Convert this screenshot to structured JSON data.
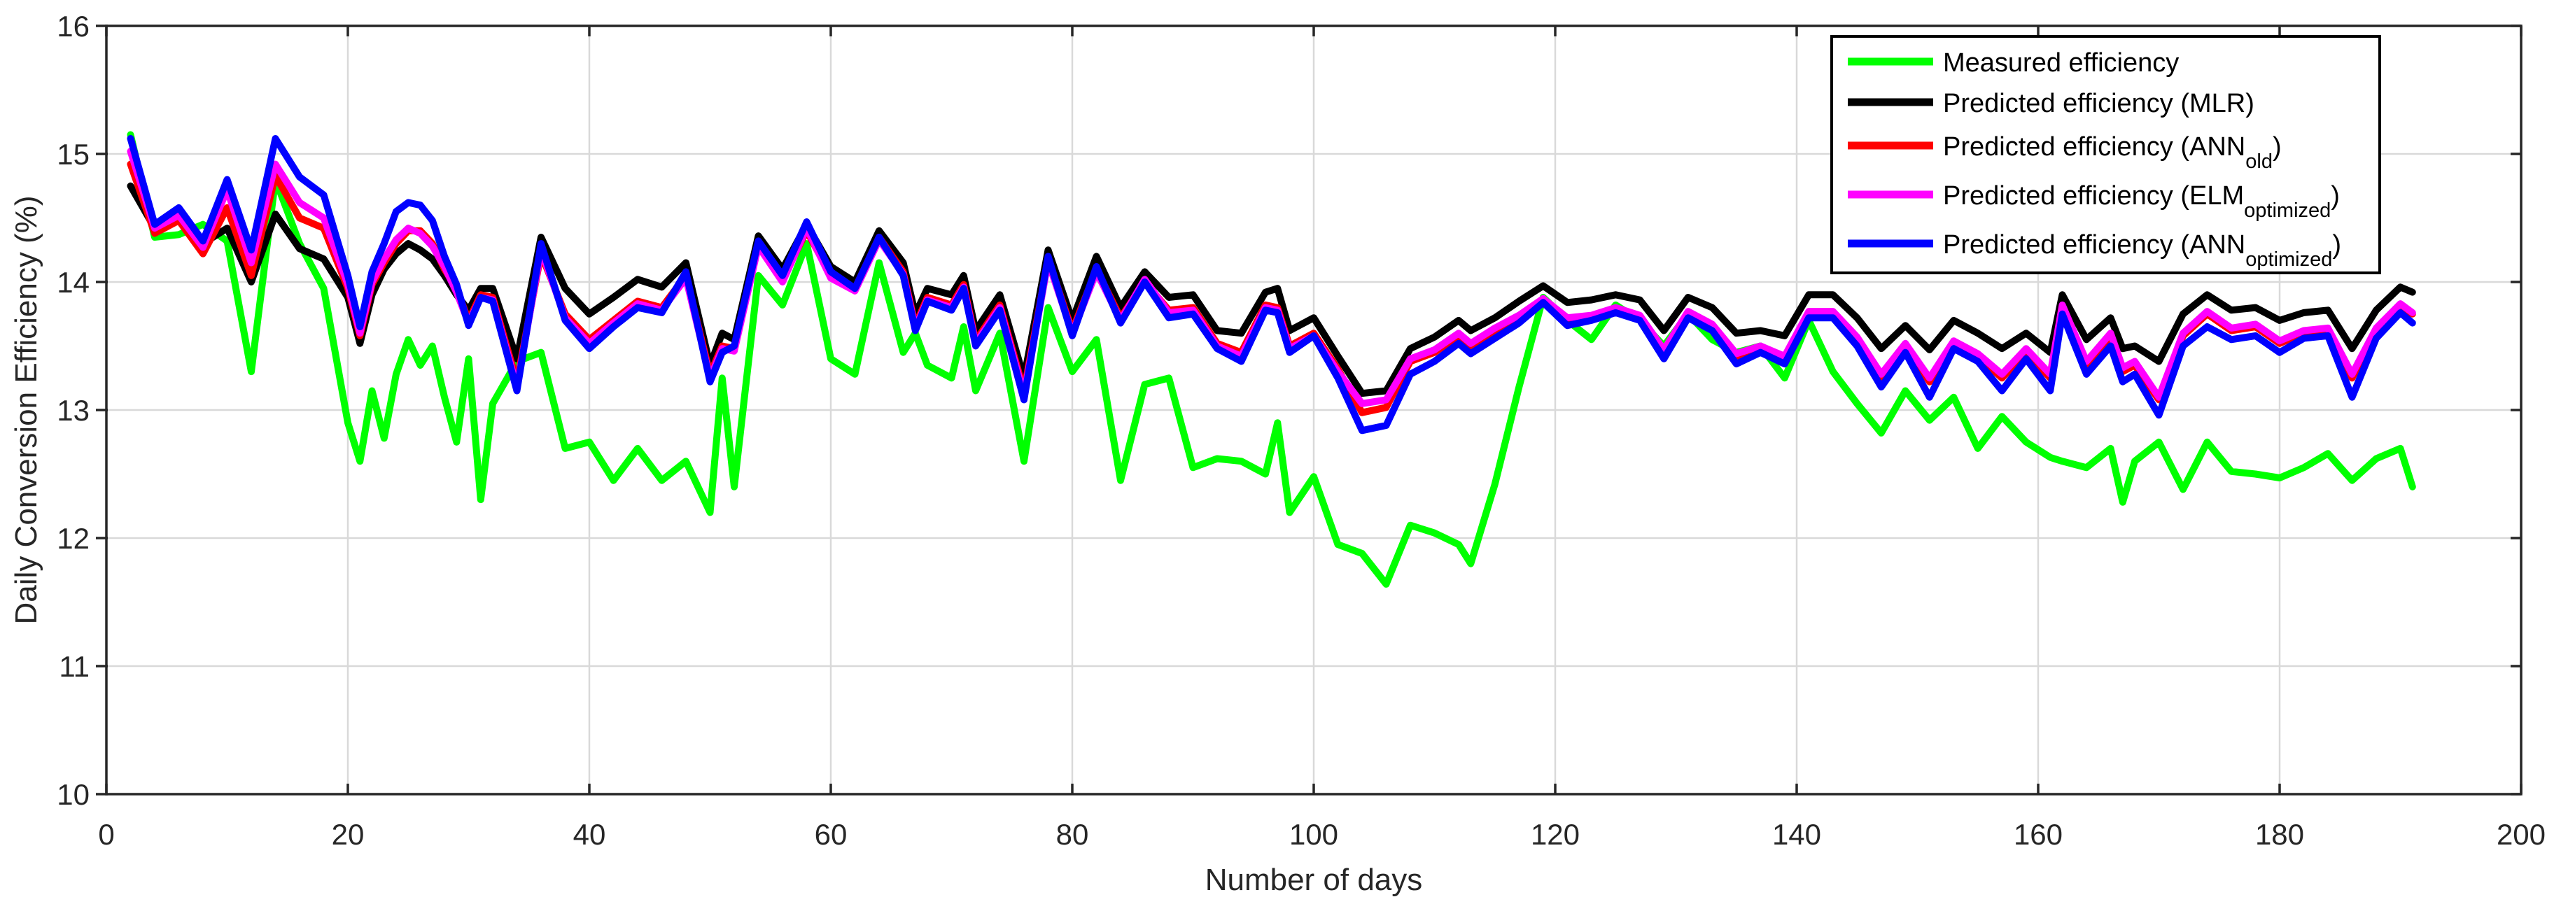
{
  "chart_data": {
    "type": "line",
    "title": "",
    "xlabel": "Number of days",
    "ylabel": "Daily Conversion Efficiency (%)",
    "xlim": [
      0,
      200
    ],
    "ylim": [
      10,
      16
    ],
    "xticks": [
      0,
      20,
      40,
      60,
      80,
      100,
      120,
      140,
      160,
      180,
      200
    ],
    "xtick_labels": [
      "0",
      "20",
      "40",
      "60",
      "80",
      "100",
      "120",
      "140",
      "160",
      "180",
      "200"
    ],
    "yticks": [
      10,
      11,
      12,
      13,
      14,
      15,
      16
    ],
    "ytick_labels": [
      "10",
      "11",
      "12",
      "13",
      "14",
      "15",
      "16"
    ],
    "grid": true,
    "grid_color": "#d9d9d9",
    "axis_color": "#262626",
    "legend_position": "top-right",
    "x": [
      2,
      4,
      6,
      8,
      10,
      12,
      14,
      16,
      18,
      20,
      21,
      22,
      23,
      24,
      25,
      26,
      27,
      28,
      29,
      30,
      31,
      32,
      34,
      36,
      38,
      40,
      42,
      44,
      46,
      48,
      50,
      51,
      52,
      54,
      56,
      58,
      60,
      62,
      64,
      66,
      67,
      68,
      70,
      71,
      72,
      74,
      76,
      78,
      80,
      82,
      84,
      86,
      88,
      90,
      92,
      94,
      96,
      97,
      98,
      100,
      102,
      104,
      106,
      108,
      110,
      112,
      113,
      115,
      117,
      119,
      121,
      123,
      125,
      127,
      129,
      131,
      133,
      135,
      137,
      139,
      141,
      143,
      145,
      147,
      149,
      151,
      153,
      155,
      157,
      159,
      161,
      162,
      164,
      166,
      167,
      168,
      170,
      172,
      174,
      176,
      178,
      180,
      182,
      184,
      186,
      188,
      190,
      191
    ],
    "series": [
      {
        "name": "measured-efficiency",
        "label_main": "Measured efficiency",
        "label_sub": "",
        "label_close": "",
        "color": "#00ff00",
        "values": [
          15.15,
          14.35,
          14.37,
          14.45,
          14.32,
          13.3,
          14.8,
          14.3,
          13.95,
          12.9,
          12.6,
          13.15,
          12.78,
          13.28,
          13.55,
          13.35,
          13.5,
          13.1,
          12.75,
          13.4,
          12.3,
          13.05,
          13.38,
          13.45,
          12.7,
          12.75,
          12.45,
          12.7,
          12.45,
          12.6,
          12.2,
          13.25,
          12.4,
          14.05,
          13.82,
          14.3,
          13.4,
          13.28,
          14.15,
          13.45,
          13.6,
          13.35,
          13.25,
          13.65,
          13.15,
          13.6,
          12.6,
          13.8,
          13.3,
          13.55,
          12.45,
          13.2,
          13.25,
          12.55,
          12.62,
          12.6,
          12.5,
          12.9,
          12.2,
          12.48,
          11.95,
          11.88,
          11.64,
          12.1,
          12.04,
          11.95,
          11.8,
          12.42,
          13.18,
          13.88,
          13.7,
          13.55,
          13.82,
          13.7,
          13.5,
          13.75,
          13.55,
          13.45,
          13.5,
          13.25,
          13.7,
          13.3,
          13.05,
          12.82,
          13.15,
          12.92,
          13.1,
          12.7,
          12.95,
          12.75,
          12.63,
          12.6,
          12.55,
          12.7,
          12.28,
          12.6,
          12.75,
          12.38,
          12.75,
          12.52,
          12.5,
          12.47,
          12.55,
          12.66,
          12.45,
          12.62,
          12.7,
          12.4
        ]
      },
      {
        "name": "predicted-efficiency-mlr",
        "label_main": "Predicted efficiency (MLR)",
        "label_sub": "",
        "label_close": "",
        "color": "#000000",
        "values": [
          14.75,
          14.42,
          14.55,
          14.3,
          14.42,
          14.0,
          14.53,
          14.26,
          14.18,
          13.88,
          13.52,
          13.9,
          14.1,
          14.22,
          14.3,
          14.25,
          14.18,
          14.05,
          13.9,
          13.78,
          13.95,
          13.95,
          13.4,
          14.35,
          13.95,
          13.75,
          13.88,
          14.02,
          13.96,
          14.15,
          13.35,
          13.6,
          13.55,
          14.36,
          14.1,
          14.45,
          14.12,
          14.0,
          14.4,
          14.15,
          13.75,
          13.95,
          13.9,
          14.05,
          13.62,
          13.9,
          13.25,
          14.25,
          13.7,
          14.2,
          13.8,
          14.08,
          13.88,
          13.9,
          13.62,
          13.6,
          13.92,
          13.95,
          13.62,
          13.72,
          13.42,
          13.13,
          13.15,
          13.48,
          13.57,
          13.7,
          13.62,
          13.72,
          13.85,
          13.97,
          13.84,
          13.86,
          13.9,
          13.86,
          13.62,
          13.88,
          13.8,
          13.6,
          13.62,
          13.58,
          13.9,
          13.9,
          13.72,
          13.48,
          13.66,
          13.47,
          13.7,
          13.6,
          13.48,
          13.6,
          13.45,
          13.9,
          13.55,
          13.72,
          13.48,
          13.5,
          13.38,
          13.75,
          13.9,
          13.78,
          13.8,
          13.7,
          13.76,
          13.78,
          13.48,
          13.78,
          13.96,
          13.92
        ]
      },
      {
        "name": "predicted-efficiency-ann-old",
        "label_main": "Predicted efficiency (ANN",
        "label_sub": "old",
        "label_close": ")",
        "color": "#ff0000",
        "values": [
          14.92,
          14.38,
          14.48,
          14.22,
          14.58,
          14.05,
          14.83,
          14.5,
          14.42,
          13.95,
          13.58,
          13.98,
          14.15,
          14.3,
          14.4,
          14.4,
          14.3,
          14.1,
          13.95,
          13.7,
          13.9,
          13.88,
          13.22,
          14.22,
          13.75,
          13.55,
          13.7,
          13.85,
          13.8,
          14.05,
          13.28,
          13.5,
          13.48,
          14.3,
          14.02,
          14.4,
          14.05,
          13.95,
          14.35,
          14.08,
          13.66,
          13.88,
          13.82,
          13.98,
          13.54,
          13.82,
          13.15,
          14.18,
          13.62,
          14.1,
          13.72,
          14.0,
          13.78,
          13.8,
          13.52,
          13.45,
          13.82,
          13.8,
          13.5,
          13.6,
          13.32,
          12.98,
          13.02,
          13.38,
          13.45,
          13.58,
          13.5,
          13.62,
          13.72,
          13.85,
          13.7,
          13.72,
          13.78,
          13.72,
          13.45,
          13.75,
          13.65,
          13.42,
          13.48,
          13.4,
          13.75,
          13.75,
          13.55,
          13.25,
          13.5,
          13.22,
          13.52,
          13.42,
          13.25,
          13.45,
          13.25,
          13.8,
          13.35,
          13.58,
          13.3,
          13.35,
          13.08,
          13.58,
          13.75,
          13.62,
          13.65,
          13.52,
          13.6,
          13.62,
          13.25,
          13.62,
          13.82,
          13.75
        ]
      },
      {
        "name": "predicted-efficiency-elm-optimized",
        "label_main": "Predicted efficiency (ELM",
        "label_sub": "optimized",
        "label_close": ")",
        "color": "#ff00ff",
        "values": [
          15.02,
          14.42,
          14.52,
          14.27,
          14.72,
          14.15,
          14.92,
          14.62,
          14.5,
          13.98,
          13.6,
          14.0,
          14.18,
          14.33,
          14.42,
          14.38,
          14.28,
          14.12,
          13.92,
          13.68,
          13.88,
          13.86,
          13.18,
          14.25,
          13.72,
          13.52,
          13.68,
          13.83,
          13.78,
          14.03,
          13.25,
          13.48,
          13.46,
          14.28,
          14.0,
          14.42,
          14.03,
          13.93,
          14.33,
          14.06,
          13.64,
          13.86,
          13.8,
          13.96,
          13.52,
          13.8,
          13.12,
          14.16,
          13.6,
          14.08,
          13.7,
          14.02,
          13.76,
          13.78,
          13.5,
          13.42,
          13.8,
          13.78,
          13.48,
          13.58,
          13.3,
          13.05,
          13.08,
          13.4,
          13.47,
          13.6,
          13.52,
          13.64,
          13.74,
          13.87,
          13.72,
          13.74,
          13.8,
          13.74,
          13.47,
          13.77,
          13.67,
          13.44,
          13.5,
          13.42,
          13.77,
          13.77,
          13.57,
          13.28,
          13.52,
          13.25,
          13.54,
          13.44,
          13.28,
          13.48,
          13.28,
          13.82,
          13.38,
          13.6,
          13.33,
          13.38,
          13.1,
          13.6,
          13.77,
          13.64,
          13.67,
          13.54,
          13.62,
          13.64,
          13.28,
          13.64,
          13.83,
          13.76
        ]
      },
      {
        "name": "predicted-efficiency-ann-optimized",
        "label_main": "Predicted efficiency (ANN",
        "label_sub": "optimized",
        "label_close": ")",
        "color": "#0000ff",
        "values": [
          15.12,
          14.45,
          14.58,
          14.32,
          14.8,
          14.25,
          15.12,
          14.82,
          14.68,
          14.05,
          13.65,
          14.08,
          14.3,
          14.55,
          14.62,
          14.6,
          14.48,
          14.2,
          13.98,
          13.66,
          13.88,
          13.85,
          13.15,
          14.3,
          13.7,
          13.48,
          13.65,
          13.8,
          13.76,
          14.08,
          13.22,
          13.45,
          13.5,
          14.32,
          14.05,
          14.47,
          14.08,
          13.95,
          14.35,
          14.05,
          13.62,
          13.85,
          13.78,
          13.95,
          13.5,
          13.78,
          13.08,
          14.2,
          13.58,
          14.12,
          13.68,
          14.0,
          13.72,
          13.75,
          13.48,
          13.38,
          13.78,
          13.76,
          13.45,
          13.58,
          13.25,
          12.84,
          12.88,
          13.28,
          13.38,
          13.52,
          13.44,
          13.56,
          13.68,
          13.84,
          13.66,
          13.7,
          13.76,
          13.7,
          13.4,
          13.72,
          13.62,
          13.36,
          13.45,
          13.36,
          13.72,
          13.72,
          13.5,
          13.18,
          13.45,
          13.1,
          13.48,
          13.38,
          13.15,
          13.4,
          13.15,
          13.75,
          13.28,
          13.5,
          13.22,
          13.28,
          12.96,
          13.5,
          13.65,
          13.55,
          13.58,
          13.45,
          13.56,
          13.58,
          13.1,
          13.56,
          13.76,
          13.68
        ]
      }
    ]
  }
}
